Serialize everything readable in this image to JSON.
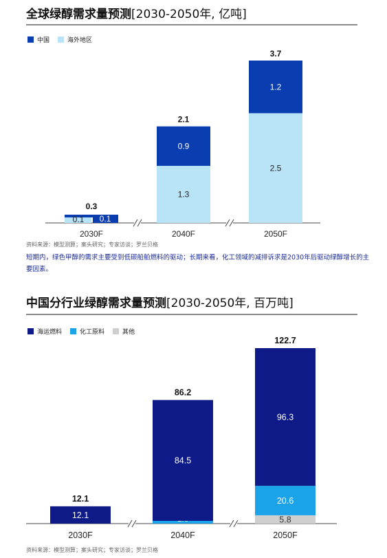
{
  "chart1": {
    "title_bold": "全球绿醇需求量预测",
    "title_unit": "[2030-2050年, 亿吨]",
    "source": "资料来源：模型测算；案头研究；专家访谈；罗兰贝格",
    "colors": {
      "中国": "#0a3db0",
      "海外地区": "#b9e3f7"
    },
    "chart_data": {
      "type": "bar",
      "stacked": true,
      "categories": [
        "2030F",
        "2040F",
        "2050F"
      ],
      "series": [
        {
          "name": "海外地区",
          "values": [
            0.1,
            1.3,
            2.5
          ]
        },
        {
          "name": "中国",
          "values": [
            0.1,
            0.9,
            1.2
          ]
        }
      ],
      "totals": [
        "0.3",
        "2.1",
        "3.7"
      ],
      "legend_order": [
        "中国",
        "海外地区"
      ],
      "legend": "top-left",
      "grid": false
    }
  },
  "note": "短期内，绿色甲醇的需求主要受到低碳船舶燃料的驱动；长期来看，化工领域的减排诉求是2030年后驱动绿醇增长的主要因素。",
  "chart2": {
    "title_bold": "中国分行业绿醇需求量预测",
    "title_unit": "[2030-2050年, 百万吨]",
    "source": "资料来源：模型测算；案头研究；专家访谈；罗兰贝格",
    "colors": {
      "海运燃料": "#0d1a87",
      "化工原料": "#1aa3e8",
      "其他": "#cfcfcf"
    },
    "chart_data": {
      "type": "bar",
      "stacked": true,
      "categories": [
        "2030F",
        "2040F",
        "2050F"
      ],
      "series": [
        {
          "name": "其他",
          "values": [
            0,
            0,
            5.8
          ]
        },
        {
          "name": "化工原料",
          "values": [
            0,
            1.6,
            20.6
          ]
        },
        {
          "name": "海运燃料",
          "values": [
            12.1,
            84.5,
            96.3
          ]
        }
      ],
      "totals": [
        "12.1",
        "86.2",
        "122.7"
      ],
      "legend_order": [
        "海运燃料",
        "化工原料",
        "其他"
      ],
      "legend": "top-left",
      "grid": false
    }
  }
}
